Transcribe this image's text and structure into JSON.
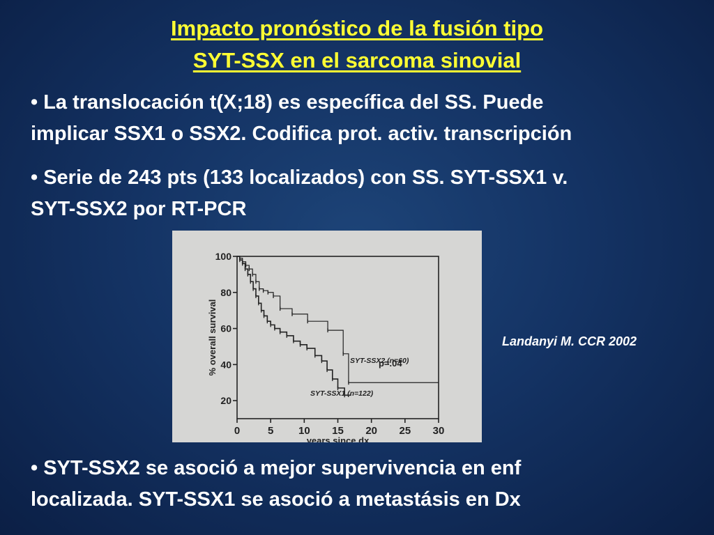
{
  "slide": {
    "title_line1": "Impacto pronóstico de la fusión tipo",
    "title_line2": "SYT-SSX en el sarcoma sinovial",
    "bullet1_line1": "• La translocación t(X;18) es específica del SS. Puede",
    "bullet1_line2": "implicar SSX1 o SSX2. Codifica prot. activ.  transcripción",
    "bullet2_line1": "• Serie de 243 pts (133 localizados) con SS. SYT-SSX1 v.",
    "bullet2_line2": "SYT-SSX2 por RT-PCR",
    "bullet3_line1": "• SYT-SSX2 se asoció a mejor supervivencia en enf",
    "bullet3_line2": "localizada. SYT-SSX1 se asoció a metastásis en Dx",
    "citation": "Landanyi M. CCR 2002"
  },
  "colors": {
    "title": "#ffff33",
    "text": "#ffffff",
    "plot_bg": "#d6d6d4",
    "ink": "#222222"
  },
  "chart_data": {
    "type": "line",
    "title": "",
    "xlabel": "years since dx",
    "ylabel": "% overall survival",
    "xlim": [
      0,
      30
    ],
    "ylim": [
      10,
      100
    ],
    "xticks": [
      0,
      5,
      10,
      15,
      20,
      25,
      30
    ],
    "yticks": [
      20,
      40,
      60,
      80,
      100
    ],
    "grid": false,
    "annotation": "p=.04",
    "series": [
      {
        "name": "SYT-SSX2 (n=60)",
        "step": true,
        "x": [
          0,
          0.4,
          0.8,
          1.3,
          1.8,
          2.3,
          2.8,
          3.3,
          3.9,
          4.6,
          5.4,
          6.4,
          8.2,
          10.5,
          13.5,
          15.8,
          16.6,
          30
        ],
        "y": [
          100,
          99,
          97,
          95,
          93,
          90,
          86,
          82,
          81,
          80,
          78,
          71,
          68,
          64,
          59,
          46,
          30,
          30
        ]
      },
      {
        "name": "SYT-SSX1 (n=122)",
        "step": true,
        "x": [
          0,
          0.4,
          0.8,
          1.2,
          1.6,
          2.0,
          2.4,
          2.8,
          3.2,
          3.6,
          4.0,
          4.5,
          5.0,
          5.6,
          6.4,
          7.4,
          8.4,
          9.4,
          10.4,
          11.6,
          12.6,
          13.4,
          14.2,
          15.0,
          16.0,
          17.0
        ],
        "y": [
          100,
          98,
          96,
          93,
          90,
          86,
          82,
          78,
          74,
          70,
          67,
          64,
          62,
          60,
          58,
          56,
          53,
          51,
          49,
          45,
          42,
          37,
          32,
          27,
          23,
          23
        ]
      }
    ]
  }
}
